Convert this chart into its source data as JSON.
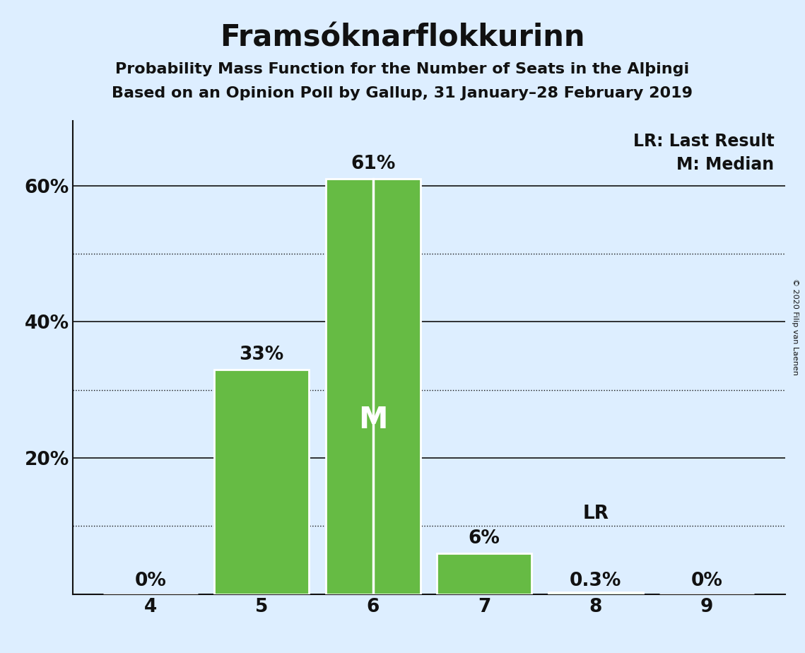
{
  "title": "Framsóknarflokkurinn",
  "subtitle1": "Probability Mass Function for the Number of Seats in the Alþingi",
  "subtitle2": "Based on an Opinion Poll by Gallup, 31 January–28 February 2019",
  "copyright": "© 2020 Filip van Laenen",
  "seats": [
    4,
    5,
    6,
    7,
    8,
    9
  ],
  "probabilities": [
    0.0,
    0.33,
    0.61,
    0.06,
    0.003,
    0.0
  ],
  "labels": [
    "0%",
    "33%",
    "61%",
    "6%",
    "0.3%",
    "0%"
  ],
  "bar_color": "#66bb44",
  "median_seat": 6,
  "last_result_seat": 8,
  "median_label": "M",
  "lr_label": "LR",
  "legend_lr": "LR: Last Result",
  "legend_m": "M: Median",
  "background_color": "#ddeeff",
  "bar_edge_color": "white",
  "solid_grid_levels": [
    0.2,
    0.4,
    0.6
  ],
  "dotted_grid_levels": [
    0.1,
    0.3,
    0.5
  ],
  "grid_color": "#111111",
  "text_color": "#111111",
  "title_fontsize": 30,
  "subtitle_fontsize": 16,
  "label_fontsize": 19,
  "tick_fontsize": 19,
  "legend_fontsize": 17,
  "ylim": [
    0,
    0.695
  ],
  "yticks": [
    0.2,
    0.4,
    0.6
  ],
  "ytick_labels": [
    "20%",
    "40%",
    "60%"
  ]
}
